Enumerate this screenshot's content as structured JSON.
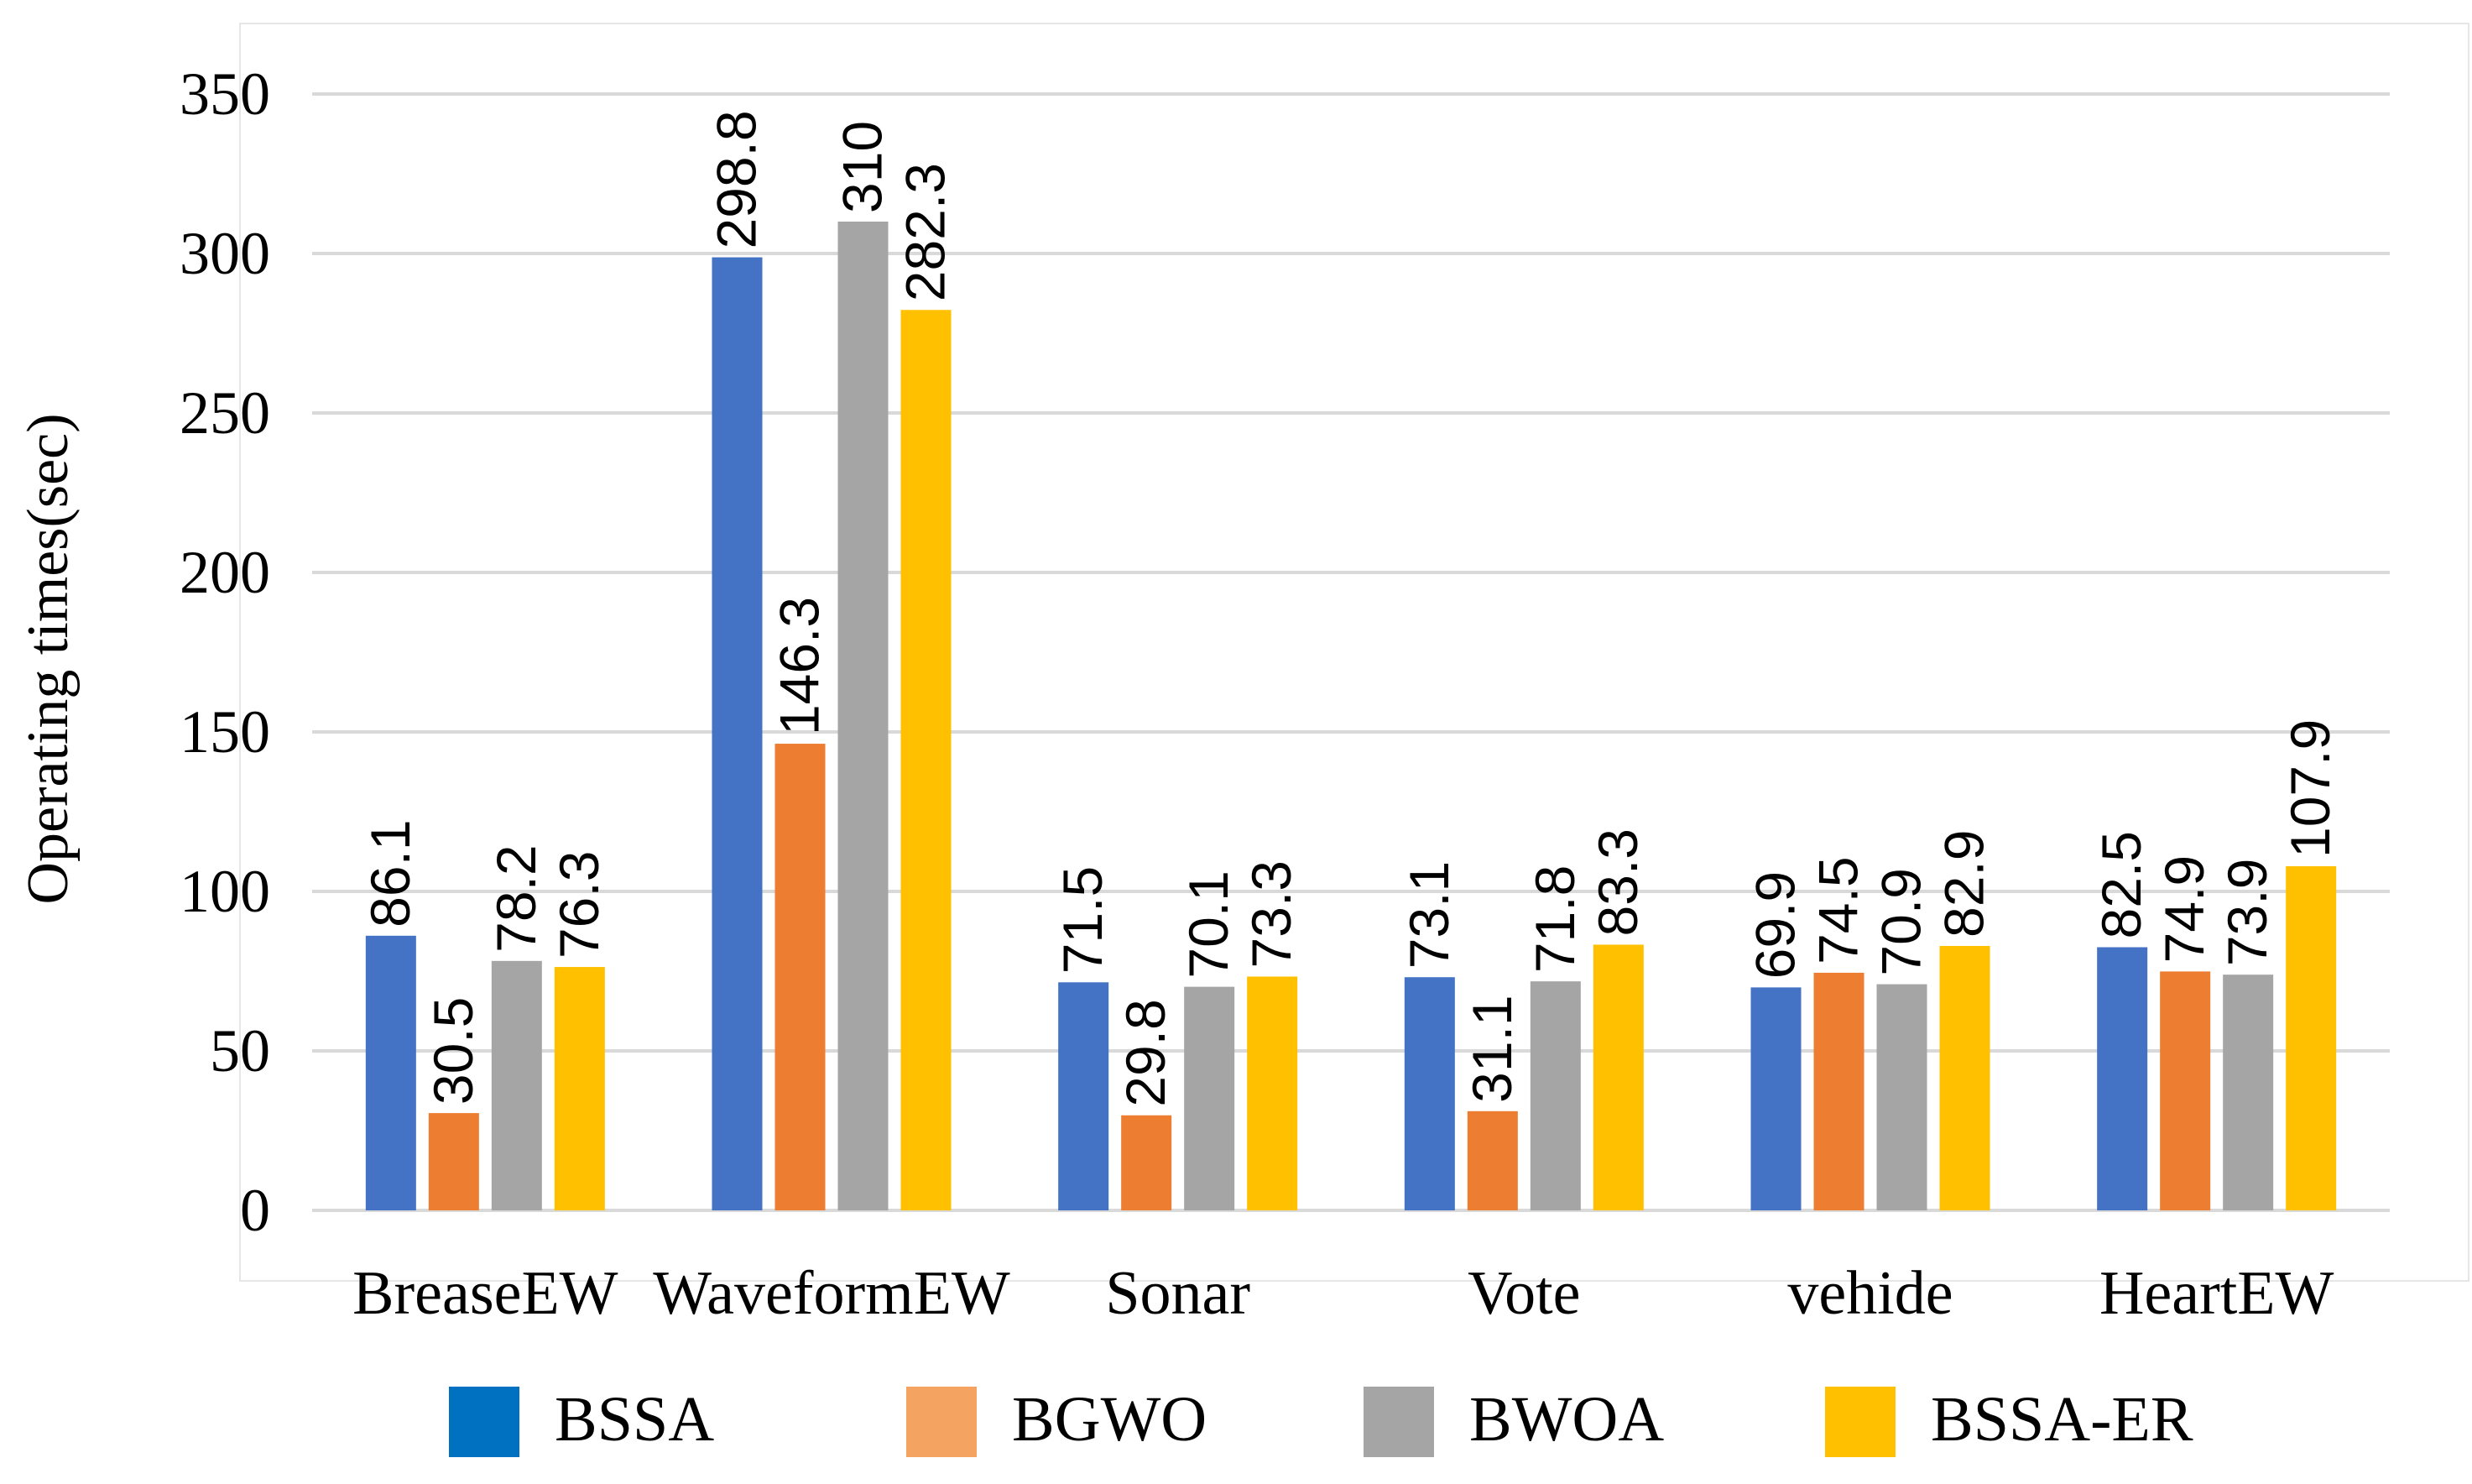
{
  "chart_data": {
    "type": "bar",
    "title": "",
    "xlabel": "",
    "ylabel": "Operating times(sec)",
    "ylim": [
      0,
      350
    ],
    "yticks": [
      0,
      50,
      100,
      150,
      200,
      250,
      300,
      350
    ],
    "grid": true,
    "legend_position": "bottom",
    "categories": [
      "BreaseEW",
      "WaveformEW",
      "Sonar",
      "Vote",
      "vehide",
      "HeartEW"
    ],
    "series": [
      {
        "name": "BSSA",
        "color": "#4472C4",
        "legend_color": "#0070C0",
        "values": [
          86.1,
          298.8,
          71.5,
          73.1,
          69.9,
          82.5
        ],
        "labels": [
          "86.1",
          "298.8",
          "71.5",
          "73.1",
          "69.9",
          "82.5"
        ]
      },
      {
        "name": "BGWO",
        "color": "#ED7D31",
        "legend_color": "#F4A460",
        "values": [
          30.5,
          146.3,
          29.8,
          31.1,
          74.5,
          74.9
        ],
        "labels": [
          "30.5",
          "146.3",
          "29.8",
          "31.1",
          "74.5",
          "74.9"
        ]
      },
      {
        "name": "BWOA",
        "color": "#A5A5A5",
        "legend_color": "#A5A5A5",
        "values": [
          78.2,
          310,
          70.1,
          71.8,
          70.9,
          73.9
        ],
        "labels": [
          "78.2",
          "310",
          "70.1",
          "71.8",
          "70.9",
          "73.9"
        ]
      },
      {
        "name": "BSSA-ER",
        "color": "#FFC000",
        "legend_color": "#FFC000",
        "values": [
          76.3,
          282.3,
          73.3,
          83.3,
          82.9,
          107.9
        ],
        "labels": [
          "76.3",
          "282.3",
          "73.3",
          "83.3",
          "82.9",
          "107.9"
        ]
      }
    ]
  }
}
